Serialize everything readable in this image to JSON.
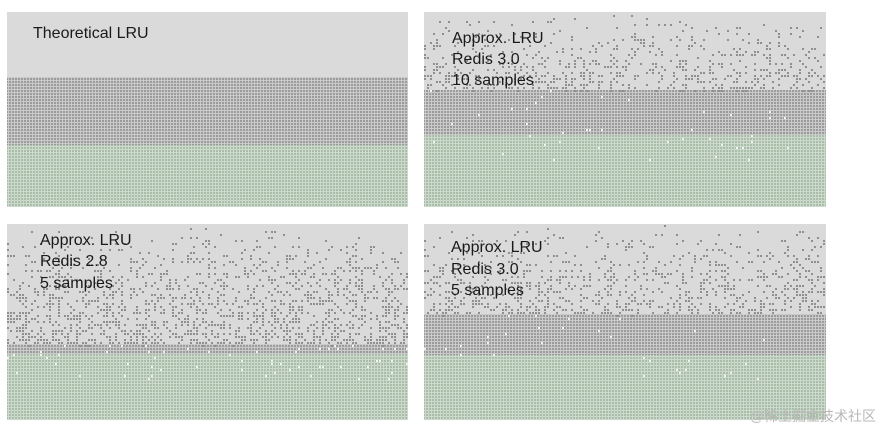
{
  "panels": [
    {
      "lines": [
        "Theoretical LRU"
      ]
    },
    {
      "lines": [
        "Approx. LRU",
        "Redis 3.0",
        "10 samples"
      ]
    },
    {
      "lines": [
        "Approx. LRU",
        "Redis 2.8",
        "5 samples"
      ]
    },
    {
      "lines": [
        "Approx. LRU",
        "Redis 3.0",
        "5 samples"
      ]
    }
  ],
  "watermark": "@稀土掘金技术社区"
}
